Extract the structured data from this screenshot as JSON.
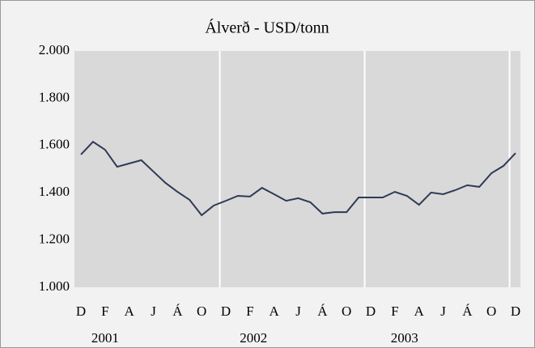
{
  "chart_data": {
    "type": "line",
    "title": "Álverð - USD/tonn",
    "categories": [
      "D",
      null,
      "F",
      null,
      "A",
      null,
      "J",
      null,
      "Á",
      null,
      "O",
      null,
      "D",
      null,
      "F",
      null,
      "A",
      null,
      "J",
      null,
      "Á",
      null,
      "O",
      null,
      "D",
      null,
      "F",
      null,
      "A",
      null,
      "J",
      null,
      "Á",
      null,
      "O",
      null,
      "D"
    ],
    "year_labels": [
      "2001",
      "2002",
      "2003"
    ],
    "series": [
      {
        "name": "Álverð",
        "color": "#2e3a55",
        "values": [
          1562,
          1616,
          1582,
          1510,
          1524,
          1538,
          1490,
          1442,
          1404,
          1370,
          1305,
          1346,
          1366,
          1387,
          1384,
          1421,
          1394,
          1366,
          1377,
          1360,
          1312,
          1318,
          1318,
          1380,
          1380,
          1380,
          1404,
          1387,
          1349,
          1401,
          1394,
          1411,
          1432,
          1425,
          1483,
          1514,
          1568
        ]
      }
    ],
    "ylim": [
      1000,
      2000
    ],
    "yticks": [
      {
        "value": 1000,
        "label": "1.000"
      },
      {
        "value": 1200,
        "label": "1.200"
      },
      {
        "value": 1400,
        "label": "1.400"
      },
      {
        "value": 1600,
        "label": "1.600"
      },
      {
        "value": 1800,
        "label": "1.800"
      },
      {
        "value": 2000,
        "label": "2.000"
      }
    ],
    "grid": true
  }
}
